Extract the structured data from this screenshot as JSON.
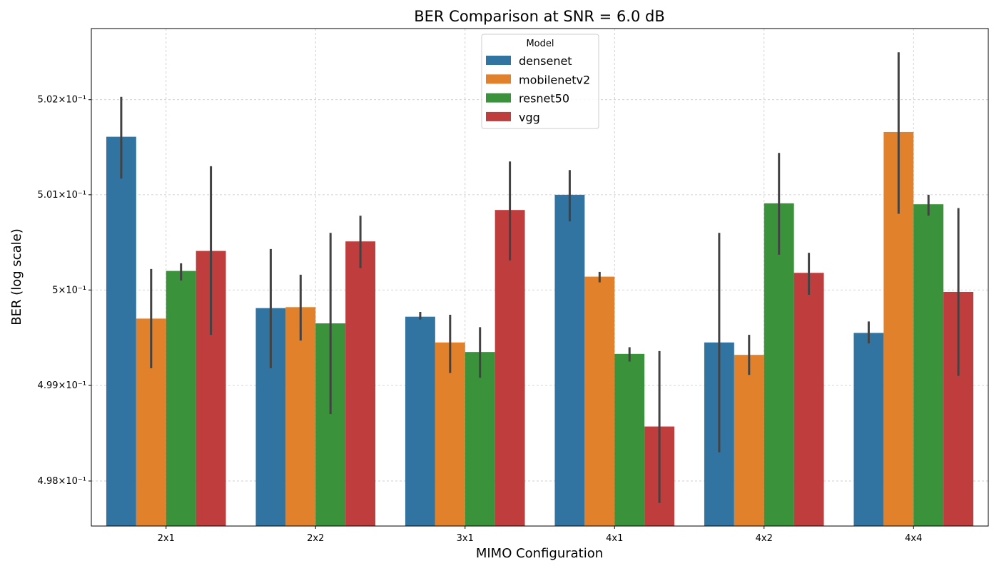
{
  "chart_data": {
    "type": "bar",
    "title": "BER Comparison at SNR = 6.0 dB",
    "xlabel": "MIMO Configuration",
    "ylabel": "BER (log scale)",
    "yscale": "log",
    "ylim": [
      0.49753,
      0.50275
    ],
    "yticks": [
      {
        "value": 0.498,
        "label": "4.98×10⁻¹"
      },
      {
        "value": 0.499,
        "label": "4.99×10⁻¹"
      },
      {
        "value": 0.5,
        "label": "5×10⁻¹"
      },
      {
        "value": 0.501,
        "label": "5.01×10⁻¹"
      },
      {
        "value": 0.502,
        "label": "5.02×10⁻¹"
      }
    ],
    "grid": true,
    "legend": {
      "title": "Model",
      "placement": "top-center"
    },
    "categories": [
      "2x1",
      "2x2",
      "3x1",
      "4x1",
      "4x2",
      "4x4"
    ],
    "series": [
      {
        "name": "densenet",
        "color": "#3274a1",
        "values": [
          0.50161,
          0.49981,
          0.49972,
          0.501,
          0.49945,
          0.49955
        ],
        "err_low": [
          0.50117,
          0.49918,
          0.49969,
          0.50072,
          0.4983,
          0.49944
        ],
        "err_high": [
          0.50203,
          0.50043,
          0.49977,
          0.50126,
          0.5006,
          0.49967
        ]
      },
      {
        "name": "mobilenetv2",
        "color": "#e1812c",
        "values": [
          0.4997,
          0.49982,
          0.49945,
          0.50014,
          0.49932,
          0.50166
        ],
        "err_low": [
          0.49918,
          0.49947,
          0.49913,
          0.50008,
          0.49911,
          0.5008
        ],
        "err_high": [
          0.50022,
          0.50016,
          0.49974,
          0.50019,
          0.49953,
          0.5025
        ]
      },
      {
        "name": "resnet50",
        "color": "#3a923a",
        "values": [
          0.5002,
          0.49965,
          0.49935,
          0.49933,
          0.50091,
          0.5009
        ],
        "err_low": [
          0.5001,
          0.4987,
          0.49908,
          0.49925,
          0.50037,
          0.50078
        ],
        "err_high": [
          0.50028,
          0.5006,
          0.49961,
          0.4994,
          0.50144,
          0.501
        ]
      },
      {
        "name": "vgg",
        "color": "#c03d3e",
        "values": [
          0.50041,
          0.50051,
          0.50084,
          0.49857,
          0.50018,
          0.49998
        ],
        "err_low": [
          0.49953,
          0.50023,
          0.50031,
          0.49777,
          0.49995,
          0.4991
        ],
        "err_high": [
          0.5013,
          0.50078,
          0.50135,
          0.49936,
          0.50039,
          0.50086
        ]
      }
    ]
  }
}
